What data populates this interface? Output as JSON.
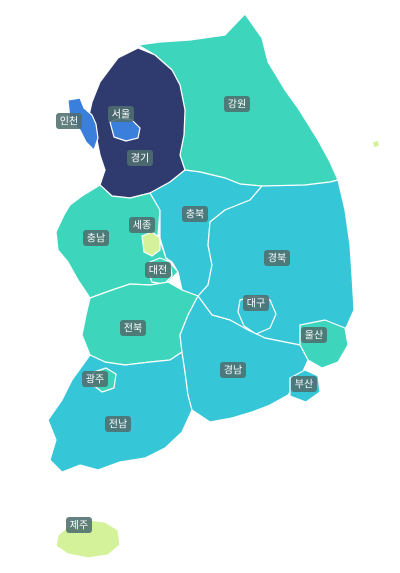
{
  "map": {
    "colors": {
      "navy": "#2f3b6e",
      "blue": "#3b7fdc",
      "teal": "#3dd6bd",
      "cyan": "#35c6d8",
      "lime": "#d4f29a",
      "label": "#4e6e6e"
    },
    "regions": [
      {
        "key": "gangwon",
        "label": "강원",
        "color": "teal"
      },
      {
        "key": "gyeonggi",
        "label": "경기",
        "color": "navy"
      },
      {
        "key": "seoul",
        "label": "서울",
        "color": "blue"
      },
      {
        "key": "incheon",
        "label": "인천",
        "color": "blue"
      },
      {
        "key": "chungnam",
        "label": "충남",
        "color": "teal"
      },
      {
        "key": "sejong",
        "label": "세종",
        "color": "lime"
      },
      {
        "key": "daejeon",
        "label": "대전",
        "color": "teal"
      },
      {
        "key": "chungbuk",
        "label": "충북",
        "color": "cyan"
      },
      {
        "key": "gyeongbuk",
        "label": "경북",
        "color": "cyan"
      },
      {
        "key": "daegu",
        "label": "대구",
        "color": "cyan"
      },
      {
        "key": "ulsan",
        "label": "울산",
        "color": "teal"
      },
      {
        "key": "jeonbuk",
        "label": "전북",
        "color": "teal"
      },
      {
        "key": "gwangju",
        "label": "광주",
        "color": "teal"
      },
      {
        "key": "jeonnam",
        "label": "전남",
        "color": "cyan"
      },
      {
        "key": "gyeongnam",
        "label": "경남",
        "color": "cyan"
      },
      {
        "key": "busan",
        "label": "부산",
        "color": "cyan"
      },
      {
        "key": "jeju",
        "label": "제주",
        "color": "lime"
      }
    ]
  }
}
